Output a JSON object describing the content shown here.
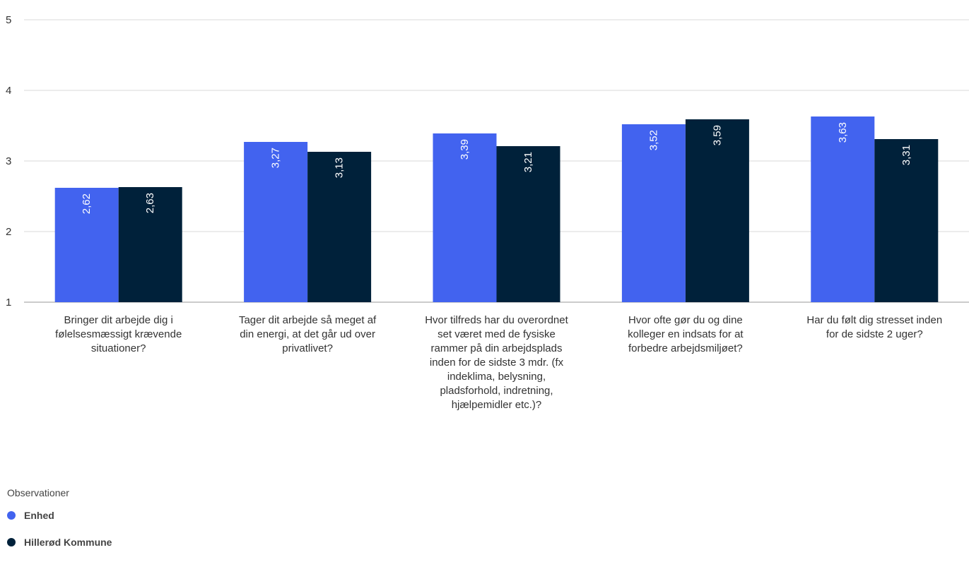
{
  "chart_data": {
    "type": "bar",
    "categories": [
      "Bringer dit arbejde dig i følelsesmæssigt krævende situationer?",
      "Tager dit arbejde så meget af din energi, at det går ud over privatlivet?",
      "Hvor tilfreds har du overordnet set været med de fysiske rammer på din arbejdsplads inden for de sidste 3 mdr. (fx indeklima, belysning, pladsforhold, indretning, hjælpemidler etc.)?",
      "Hvor ofte gør du og dine kolleger en indsats for at forbedre arbejdsmiljøet?",
      "Har du følt dig stresset inden for de sidste 2 uger?"
    ],
    "series": [
      {
        "name": "Enhed",
        "color": "#4263ef",
        "values": [
          2.62,
          3.27,
          3.39,
          3.52,
          3.63
        ],
        "labels": [
          "2,62",
          "3,27",
          "3,39",
          "3,52",
          "3,63"
        ]
      },
      {
        "name": "Hillerød Kommune",
        "color": "#00213a",
        "values": [
          2.63,
          3.13,
          3.21,
          3.59,
          3.31
        ],
        "labels": [
          "2,63",
          "3,13",
          "3,21",
          "3,59",
          "3,31"
        ]
      }
    ],
    "ylim": [
      1,
      5
    ],
    "yticks": [
      "1",
      "2",
      "3",
      "4",
      "5"
    ],
    "grid": true,
    "legend_title": "Observationer",
    "legend_position": "bottom-left"
  }
}
